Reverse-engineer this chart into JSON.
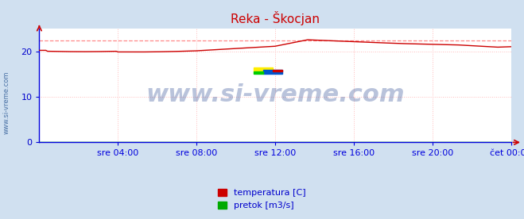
{
  "title": "Reka - Škocjan",
  "title_color": "#cc0000",
  "bg_color": "#d0e0f0",
  "plot_bg_color": "#ffffff",
  "grid_color": "#ffbbbb",
  "grid_linestyle": ":",
  "xmin": 0,
  "xmax": 288,
  "ymin": 0,
  "ymax": 25,
  "yticks": [
    0,
    10,
    20
  ],
  "xtick_labels": [
    "sre 04:00",
    "sre 08:00",
    "sre 12:00",
    "sre 16:00",
    "sre 20:00",
    "čet 00:00"
  ],
  "xtick_positions": [
    48,
    96,
    144,
    192,
    240,
    288
  ],
  "temp_color": "#cc0000",
  "pretok_color": "#00aa00",
  "watermark": "www.si-vreme.com",
  "watermark_color": "#1a3a8a",
  "watermark_alpha": 0.3,
  "watermark_fontsize": 22,
  "side_label": "www.si-vreme.com",
  "side_label_color": "#1a4a8a",
  "legend_labels": [
    "temperatura [C]",
    "pretok [m3/s]"
  ],
  "legend_colors": [
    "#cc0000",
    "#00aa00"
  ],
  "max_line_value": 22.3,
  "max_line_color": "#ff8888",
  "max_line_style": "--",
  "spine_color": "#0000dd",
  "tick_label_color": "#0000cc",
  "tick_fontsize": 8
}
